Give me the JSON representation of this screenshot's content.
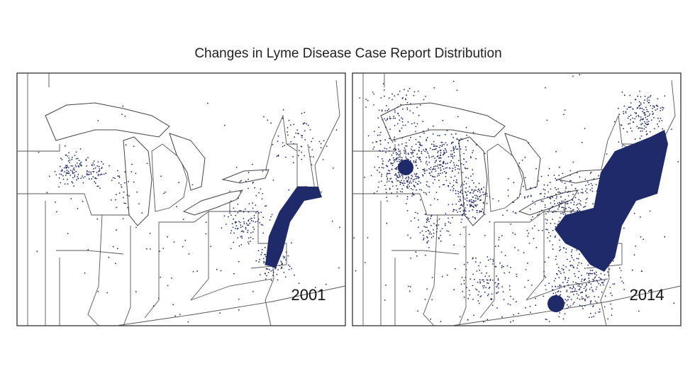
{
  "title": "Changes in Lyme Disease Case Report Distribution",
  "panels": [
    {
      "label": "2001"
    },
    {
      "label": "2014"
    }
  ]
}
